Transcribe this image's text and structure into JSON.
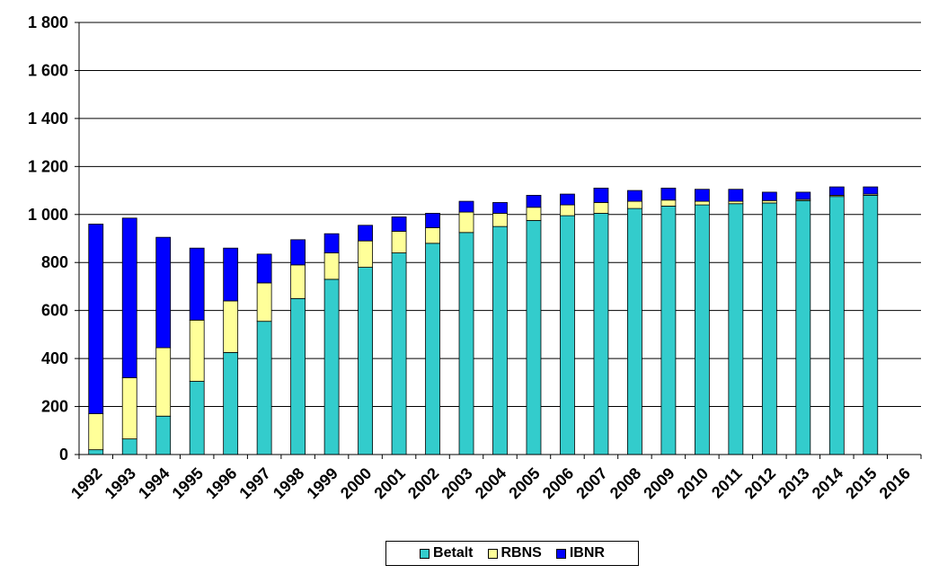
{
  "chart_data": {
    "type": "bar",
    "stacked": true,
    "title": "",
    "xlabel": "",
    "ylabel": "",
    "ylim": [
      0,
      1800
    ],
    "yticks": [
      0,
      200,
      400,
      600,
      800,
      1000,
      1200,
      1400,
      1600,
      1800
    ],
    "ytick_labels": [
      "0",
      "200",
      "400",
      "600",
      "800",
      "1 000",
      "1 200",
      "1 400",
      "1 600",
      "1 800"
    ],
    "grid": true,
    "legend_position": "bottom",
    "categories": [
      "1992",
      "1993",
      "1994",
      "1995",
      "1996",
      "1997",
      "1998",
      "1999",
      "2000",
      "2001",
      "2002",
      "2003",
      "2004",
      "2005",
      "2006",
      "2007",
      "2008",
      "2009",
      "2010",
      "2011",
      "2012",
      "2013",
      "2014",
      "2015",
      "2016"
    ],
    "series": [
      {
        "name": "Betalt",
        "color": "#33CCCC",
        "values": [
          20,
          65,
          160,
          305,
          425,
          555,
          650,
          730,
          780,
          840,
          880,
          925,
          950,
          975,
          995,
          1005,
          1025,
          1035,
          1040,
          1045,
          1048,
          1058,
          1075,
          1080,
          null
        ]
      },
      {
        "name": "RBNS",
        "color": "#FFFF99",
        "values": [
          150,
          255,
          285,
          255,
          215,
          160,
          140,
          110,
          110,
          90,
          65,
          85,
          55,
          55,
          45,
          45,
          30,
          25,
          15,
          10,
          10,
          5,
          5,
          5,
          null
        ]
      },
      {
        "name": "IBNR",
        "color": "#0000FF",
        "values": [
          790,
          665,
          460,
          300,
          220,
          120,
          105,
          80,
          65,
          60,
          60,
          45,
          45,
          50,
          45,
          60,
          45,
          50,
          50,
          50,
          35,
          30,
          35,
          30,
          null
        ]
      }
    ]
  }
}
